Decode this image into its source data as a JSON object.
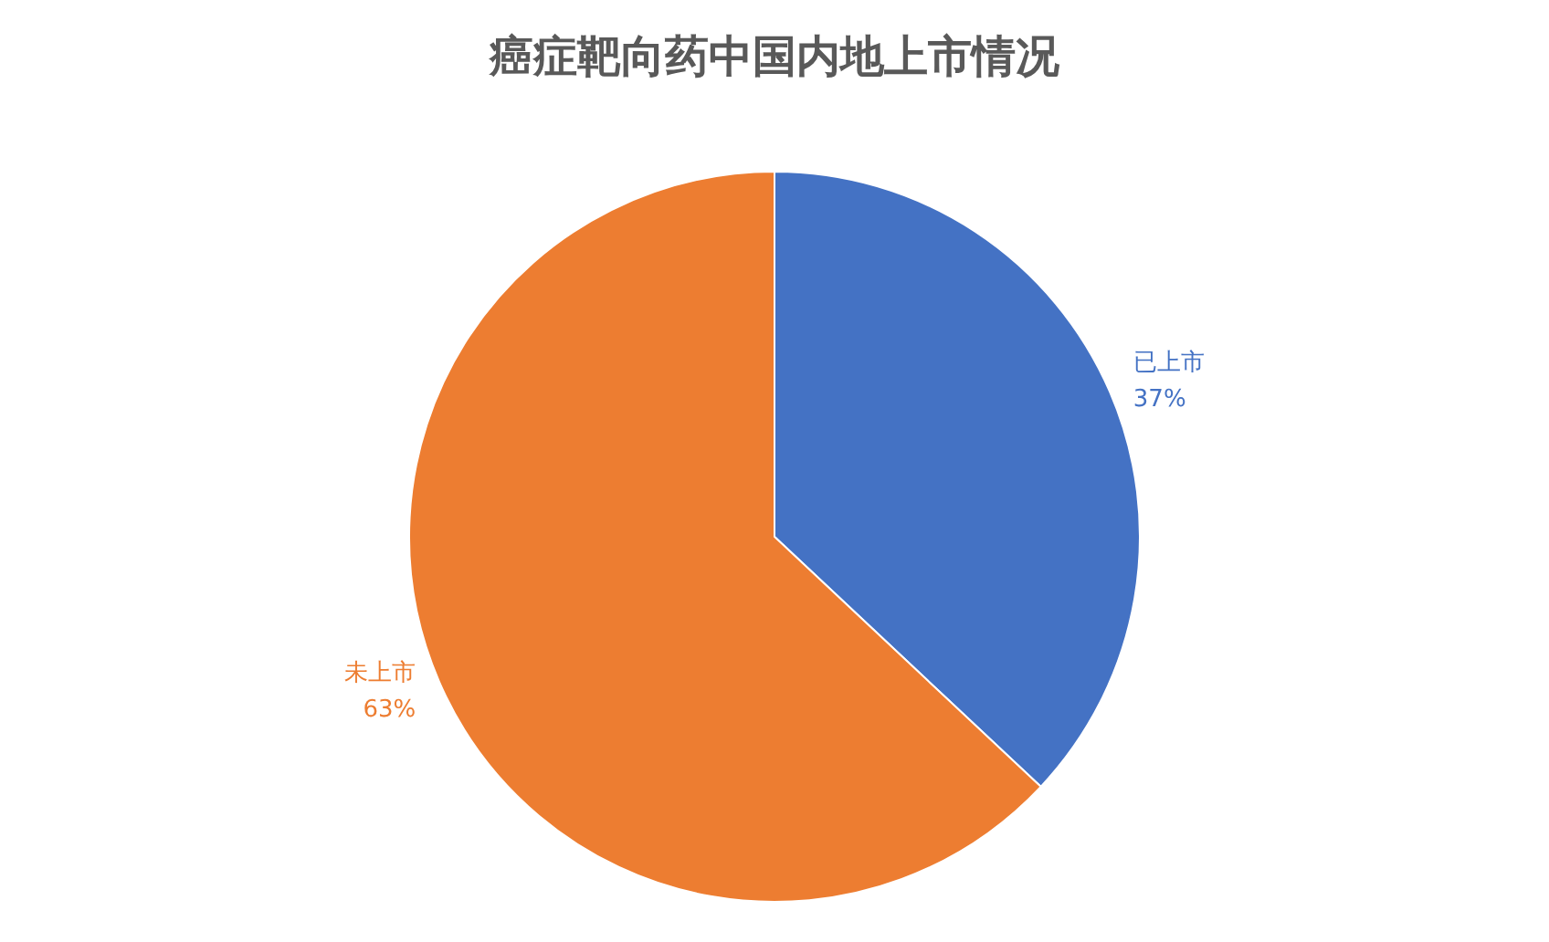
{
  "chart_data": {
    "type": "pie",
    "title": "癌症靶向药中国内地上市情况",
    "categories": [
      "已上市",
      "未上市"
    ],
    "values": [
      37,
      63
    ],
    "value_labels": [
      "37%",
      "63%"
    ],
    "colors": [
      "#4472c4",
      "#ed7d31"
    ],
    "legend": false
  }
}
